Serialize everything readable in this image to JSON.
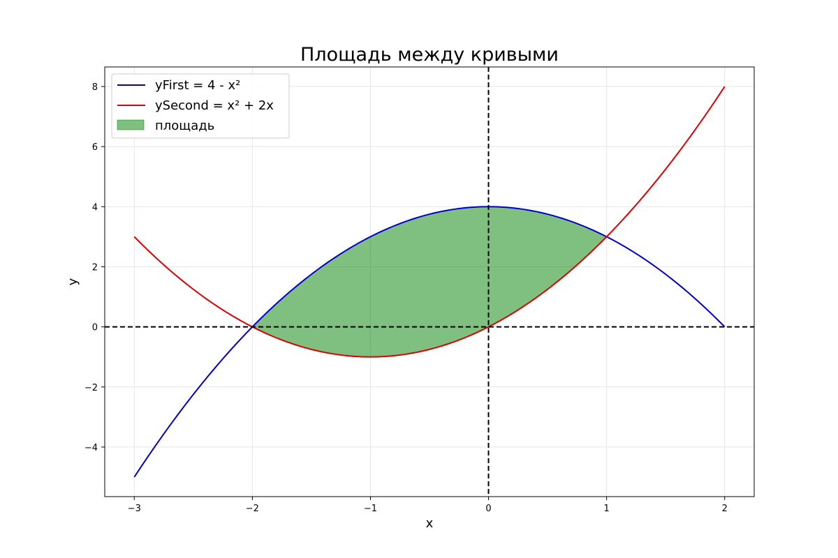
{
  "chart_data": {
    "type": "line",
    "title": "Площадь между кривыми",
    "xlabel": "x",
    "ylabel": "y",
    "xlim": [
      -3.25,
      2.25
    ],
    "ylim": [
      -5.65,
      8.65
    ],
    "grid": true,
    "legend_position": "top-left",
    "x_ticks": [
      -3,
      -2,
      -1,
      0,
      1,
      2
    ],
    "x_tick_labels": [
      "−3",
      "−2",
      "−1",
      "0",
      "1",
      "2"
    ],
    "y_ticks": [
      -4,
      -2,
      0,
      2,
      4,
      6,
      8
    ],
    "y_tick_labels": [
      "−4",
      "−2",
      "0",
      "2",
      "4",
      "6",
      "8"
    ],
    "series": [
      {
        "name": "yFirst = 4 - x²",
        "color": "#0000cc",
        "x": [
          -3,
          -2.75,
          -2.5,
          -2.25,
          -2,
          -1.75,
          -1.5,
          -1.25,
          -1,
          -0.75,
          -0.5,
          -0.25,
          0,
          0.25,
          0.5,
          0.75,
          1,
          1.25,
          1.5,
          1.75,
          2
        ],
        "y": [
          -5,
          -3.5625,
          -2.25,
          -1.0625,
          0,
          0.9375,
          1.75,
          2.4375,
          3,
          3.4375,
          3.75,
          3.9375,
          4,
          3.9375,
          3.75,
          3.4375,
          3,
          2.4375,
          1.75,
          0.9375,
          0
        ]
      },
      {
        "name": "ySecond = x² + 2x",
        "color": "#dd0000",
        "x": [
          -3,
          -2.75,
          -2.5,
          -2.25,
          -2,
          -1.75,
          -1.5,
          -1.25,
          -1,
          -0.75,
          -0.5,
          -0.25,
          0,
          0.25,
          0.5,
          0.75,
          1,
          1.25,
          1.5,
          1.75,
          2
        ],
        "y": [
          3,
          2.0625,
          1.25,
          0.5625,
          0,
          -0.4375,
          -0.75,
          -0.9375,
          -1,
          -0.9375,
          -0.75,
          -0.4375,
          0,
          0.5625,
          1.25,
          2.0625,
          3,
          4.0625,
          5.25,
          6.5625,
          8
        ]
      }
    ],
    "fill_between": {
      "name": "площадь",
      "color": "#008000",
      "alpha": 0.5,
      "x_from": -2,
      "x_to": 1
    },
    "reference_lines": {
      "horizontal_y": 0,
      "vertical_x": 0
    }
  }
}
